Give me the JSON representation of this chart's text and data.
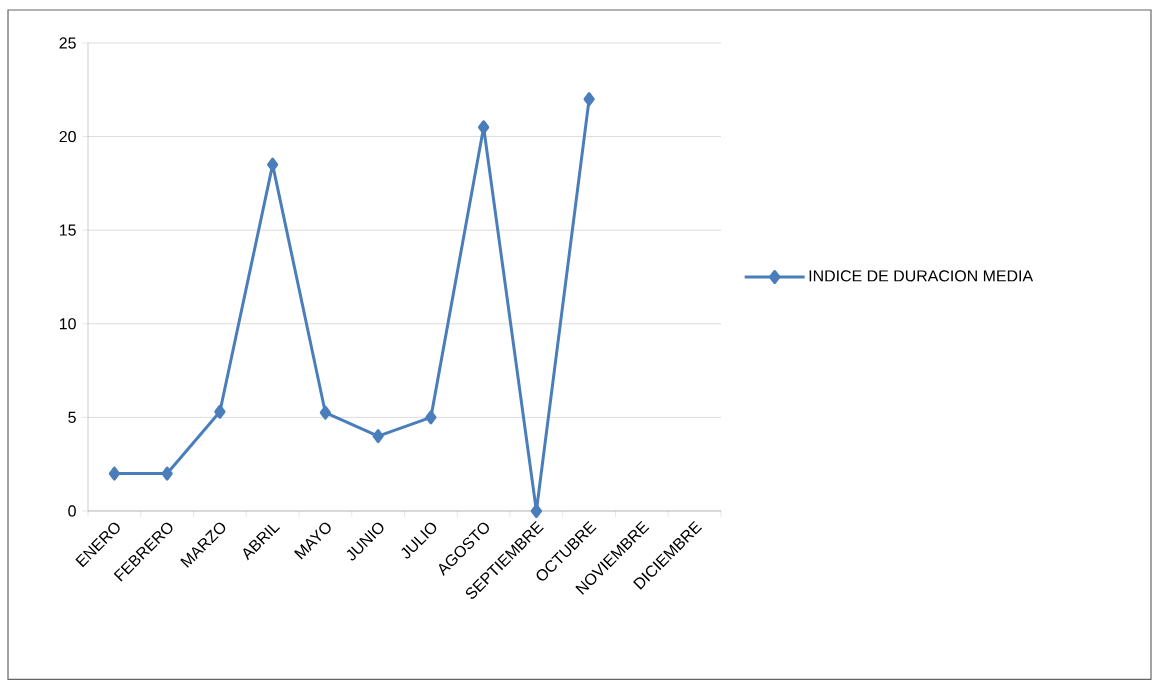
{
  "chart_data": {
    "type": "line",
    "categories": [
      "ENERO",
      "FEBRERO",
      "MARZO",
      "ABRIL",
      "MAYO",
      "JUNIO",
      "JULIO",
      "AGOSTO",
      "SEPTIEMBRE",
      "OCTUBRE",
      "NOVIEMBRE",
      "DICIEMBRE"
    ],
    "series": [
      {
        "name": "INDICE DE DURACION MEDIA",
        "color": "#4a7ebb",
        "values": [
          2,
          2,
          5.3,
          18.5,
          5.25,
          4,
          5,
          20.5,
          0,
          22,
          null,
          null
        ]
      }
    ],
    "ylim": [
      0,
      25
    ],
    "yticks": [
      0,
      5,
      10,
      15,
      20,
      25
    ],
    "grid": "y",
    "legend": "right",
    "marker": "diamond",
    "line_style": "solid"
  }
}
